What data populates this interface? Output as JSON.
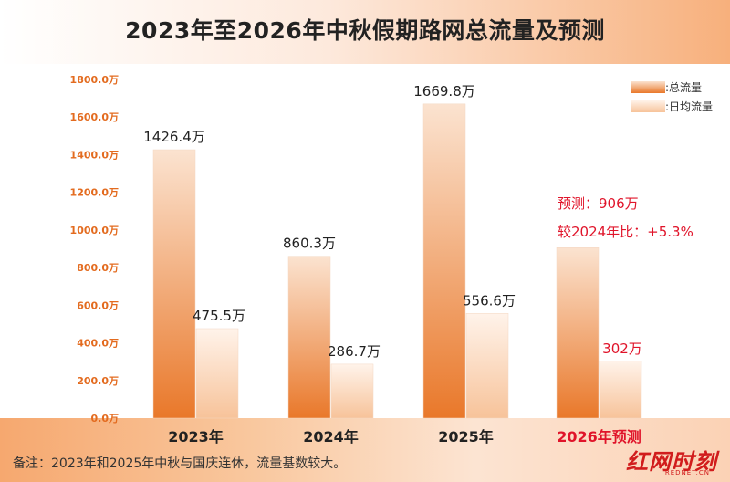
{
  "title": "2023年至2026年中秋假期路网总流量及预测",
  "footnote": "备注：2023年和2025年中秋与国庆连休，流量基数较大。",
  "logo": {
    "text": "红网时刻",
    "sub": "REDNET.CN"
  },
  "colors": {
    "total_top": "#fbe3d0",
    "total_bottom": "#e9782a",
    "daily_top": "#fff3ea",
    "daily_bottom": "#f7c39a",
    "axis_text": "#e36b1f",
    "prediction_text": "#e0142a"
  },
  "chart_data": {
    "type": "bar",
    "title": "2023年至2026年中秋假期路网总流量及预测",
    "categories": [
      "2023年",
      "2024年",
      "2025年",
      "2026年预测"
    ],
    "series": [
      {
        "name": ":总流量",
        "values": [
          1426.4,
          860.3,
          1669.8,
          906
        ],
        "labels": [
          "1426.4万",
          "860.3万",
          "1669.8万",
          ""
        ]
      },
      {
        "name": ":日均流量",
        "values": [
          475.5,
          286.7,
          556.6,
          302
        ],
        "labels": [
          "475.5万",
          "286.7万",
          "556.6万",
          "302万"
        ]
      }
    ],
    "yticks": [
      "0.0万",
      "200.0万",
      "400.0万",
      "600.0万",
      "800.0万",
      "1000.0万",
      "1200.0万",
      "1400.0万",
      "1600.0万",
      "1800.0万"
    ],
    "ylim": [
      0,
      1800
    ],
    "grid": false,
    "legend": "top-right",
    "annotation": {
      "line1": "预测：906万",
      "line2": "较2024年比：+5.3%"
    }
  }
}
